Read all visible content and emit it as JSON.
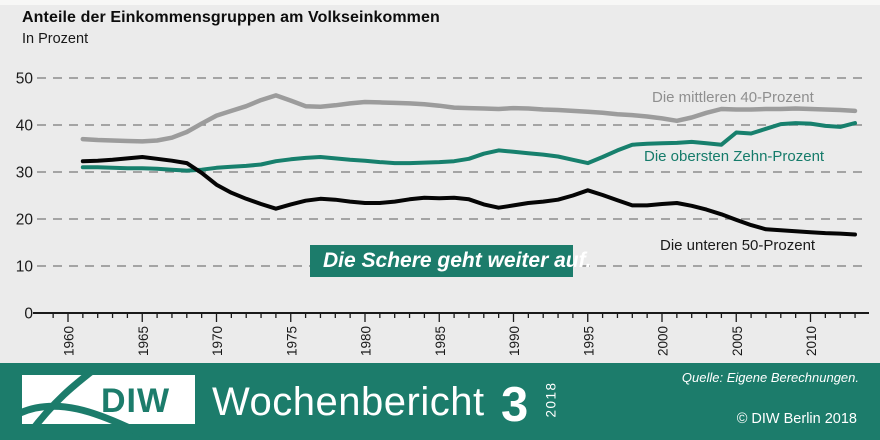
{
  "header": {
    "title": "Anteile der Einkommensgruppen am Volkseinkommen",
    "subtitle": "In Prozent"
  },
  "colors": {
    "background": "#ebebeb",
    "grid": "#8c8c8c",
    "axis": "#1a1a1a",
    "teal": "#17806d",
    "footer_teal": "#1c7c6b",
    "annotation_bg": "#1c7c6b"
  },
  "chart_data": {
    "type": "line",
    "x_start_year": 1961,
    "x": [
      1961,
      1962,
      1963,
      1964,
      1965,
      1966,
      1967,
      1968,
      1969,
      1970,
      1971,
      1972,
      1973,
      1974,
      1975,
      1976,
      1977,
      1978,
      1979,
      1980,
      1981,
      1982,
      1983,
      1984,
      1985,
      1986,
      1987,
      1988,
      1989,
      1990,
      1991,
      1992,
      1993,
      1994,
      1995,
      1996,
      1997,
      1998,
      1999,
      2000,
      2001,
      2002,
      2003,
      2004,
      2005,
      2006,
      2007,
      2008,
      2009,
      2010,
      2011,
      2012,
      2013
    ],
    "series": [
      {
        "name": "Die mittleren 40-Prozent",
        "color": "#9c9c9c",
        "width": 4.5,
        "values": [
          37.0,
          36.8,
          36.7,
          36.6,
          36.5,
          36.7,
          37.3,
          38.5,
          40.3,
          42.0,
          43.0,
          44.0,
          45.3,
          46.3,
          45.2,
          44.0,
          43.9,
          44.2,
          44.6,
          44.9,
          44.8,
          44.7,
          44.6,
          44.4,
          44.1,
          43.7,
          43.6,
          43.5,
          43.4,
          43.6,
          43.5,
          43.3,
          43.2,
          43.0,
          42.8,
          42.6,
          42.3,
          42.1,
          41.8,
          41.4,
          40.9,
          41.6,
          42.6,
          43.4,
          43.3,
          43.3,
          43.4,
          43.4,
          43.5,
          43.4,
          43.3,
          43.2,
          43.0
        ]
      },
      {
        "name": "Die obersten Zehn-Prozent",
        "color": "#17806d",
        "width": 4,
        "values": [
          31.0,
          31.0,
          30.9,
          30.8,
          30.8,
          30.7,
          30.5,
          30.3,
          30.5,
          30.9,
          31.1,
          31.3,
          31.6,
          32.3,
          32.7,
          33.0,
          33.2,
          32.9,
          32.6,
          32.4,
          32.1,
          31.9,
          31.9,
          32.0,
          32.1,
          32.3,
          32.8,
          33.9,
          34.6,
          34.3,
          34.0,
          33.7,
          33.3,
          32.6,
          31.9,
          33.2,
          34.6,
          35.8,
          36.0,
          36.1,
          36.2,
          36.4,
          36.1,
          35.8,
          38.4,
          38.2,
          39.2,
          40.2,
          40.4,
          40.3,
          39.8,
          39.6,
          40.4
        ]
      },
      {
        "name": "Die unteren 50-Prozent",
        "color": "#050505",
        "width": 4,
        "values": [
          32.3,
          32.4,
          32.6,
          32.9,
          33.2,
          32.8,
          32.4,
          31.9,
          29.8,
          27.3,
          25.6,
          24.3,
          23.2,
          22.2,
          23.1,
          23.9,
          24.3,
          24.1,
          23.7,
          23.4,
          23.4,
          23.7,
          24.2,
          24.5,
          24.4,
          24.5,
          24.2,
          23.1,
          22.4,
          22.9,
          23.4,
          23.7,
          24.1,
          25.0,
          26.1,
          25.1,
          24.0,
          22.9,
          22.9,
          23.2,
          23.4,
          22.8,
          22.0,
          21.0,
          19.8,
          18.7,
          17.8,
          17.6,
          17.4,
          17.2,
          17.0,
          16.9,
          16.7
        ]
      }
    ],
    "ylim": [
      0,
      50
    ],
    "yticks": [
      0,
      10,
      20,
      30,
      40,
      50
    ],
    "xticks_labeled": [
      1960,
      1965,
      1970,
      1975,
      1980,
      1985,
      1990,
      1995,
      2000,
      2005,
      2010
    ],
    "minor_tick_years": [
      1959,
      2013
    ],
    "grid": "horizontal dashed",
    "legend_position": "labels next to lines"
  },
  "annotation": {
    "text": "Die Schere geht weiter auf."
  },
  "footer": {
    "brand": "DIW",
    "publication": "Wochenbericht",
    "issue": "3",
    "year": "2018",
    "source": "Quelle: Eigene Berechnungen.",
    "copyright": "© DIW Berlin 2018"
  }
}
